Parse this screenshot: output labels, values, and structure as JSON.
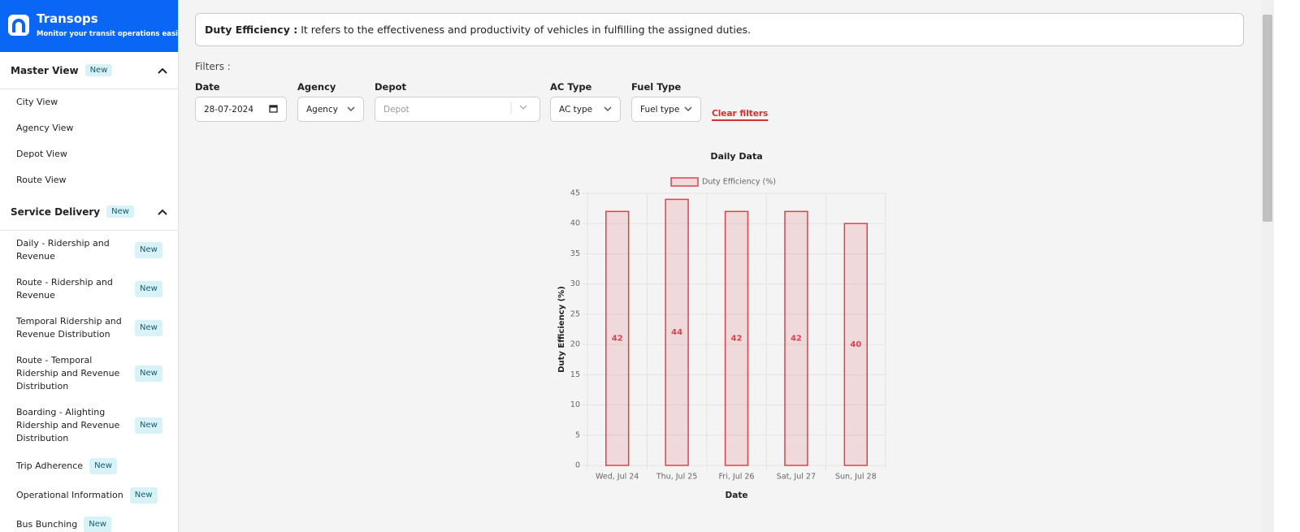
{
  "sidebar": {
    "brand": "Transops",
    "tagline": "Monitor your transit operations easily.",
    "sections": [
      {
        "title": "Master View",
        "badge": "New",
        "items": [
          {
            "label": "City View"
          },
          {
            "label": "Agency View"
          },
          {
            "label": "Depot View"
          },
          {
            "label": "Route View"
          }
        ]
      },
      {
        "title": "Service Delivery",
        "badge": "New",
        "items": [
          {
            "label": "Daily - Ridership and Revenue",
            "badge": "New"
          },
          {
            "label": "Route - Ridership and Revenue",
            "badge": "New"
          },
          {
            "label": "Temporal Ridership and Revenue Distribution",
            "badge": "New"
          },
          {
            "label": "Route - Temporal Ridership and Revenue Distribution",
            "badge": "New"
          },
          {
            "label": "Boarding - Alighting Ridership and Revenue Distribution",
            "badge": "New"
          },
          {
            "label": "Trip Adherence",
            "badge": "New",
            "inline": true
          },
          {
            "label": "Operational Information",
            "badge": "New",
            "inline": true
          },
          {
            "label": "Bus Bunching",
            "badge": "New",
            "inline": true
          }
        ]
      }
    ]
  },
  "info": {
    "label": "Duty Efficiency :",
    "text": "It refers to the effectiveness and productivity of vehicles in fulfilling the assigned duties."
  },
  "filters": {
    "title": "Filters :",
    "fields": [
      {
        "label": "Date",
        "value": "28-07-2024",
        "kind": "date"
      },
      {
        "label": "Agency",
        "value": "Agency",
        "kind": "select"
      },
      {
        "label": "Depot",
        "value": "Depot",
        "kind": "search"
      },
      {
        "label": "AC Type",
        "value": "AC type",
        "kind": "select"
      },
      {
        "label": "Fuel Type",
        "value": "Fuel type",
        "kind": "select"
      }
    ],
    "clear": "Clear filters"
  },
  "chart_data": {
    "type": "bar",
    "title": "Daily Data",
    "categories": [
      "Wed, Jul 24",
      "Thu, Jul 25",
      "Fri, Jul 26",
      "Sat, Jul 27",
      "Sun, Jul 28"
    ],
    "series": [
      {
        "name": "Duty Efficiency (%)",
        "color": "#d9434e",
        "values": [
          42,
          44,
          42,
          42,
          40
        ]
      }
    ],
    "xlabel": "Date",
    "ylabel": "Duty Efficiency (%)",
    "ylim": [
      0,
      45
    ],
    "yticks": [
      0,
      5,
      10,
      15,
      20,
      25,
      30,
      35,
      40,
      45
    ],
    "grid": true,
    "legend": "top"
  }
}
